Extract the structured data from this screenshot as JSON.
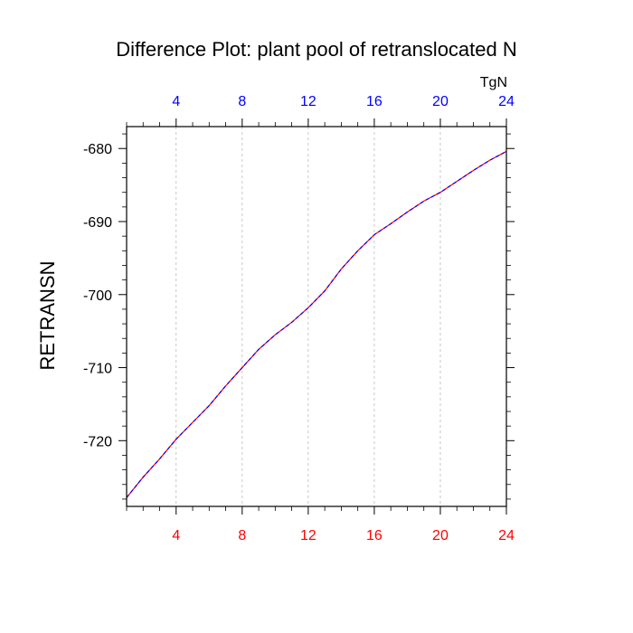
{
  "chart_data": {
    "type": "line",
    "title": "Difference Plot: plant pool of retranslocated N",
    "units": "TgN",
    "ylabel": "RETRANSN",
    "xlabel": "",
    "xlim": [
      1,
      24
    ],
    "ylim": [
      -729,
      -677
    ],
    "x_ticks": [
      4,
      8,
      12,
      16,
      20,
      24
    ],
    "y_ticks": [
      -680,
      -690,
      -700,
      -710,
      -720
    ],
    "grid": "vertical dashed at x ticks",
    "colors": {
      "bottom_axis_labels": "#ff0000",
      "top_axis_labels": "#0000ff",
      "line_primary": "#ff0000",
      "line_overlay": "#0000ff",
      "grid": "#bbbbbb",
      "axes": "#000000"
    },
    "series": [
      {
        "x": [
          1,
          2,
          3,
          4,
          5,
          6,
          7,
          8,
          9,
          10,
          11,
          12,
          13,
          14,
          15,
          16,
          17,
          18,
          19,
          20,
          21,
          22,
          23,
          24
        ],
        "values": [
          -727.8,
          -725.0,
          -722.5,
          -719.8,
          -717.5,
          -715.2,
          -712.5,
          -710.0,
          -707.5,
          -705.5,
          -703.8,
          -701.8,
          -699.5,
          -696.5,
          -694.0,
          -691.8,
          -690.3,
          -688.7,
          -687.2,
          -686.0,
          -684.5,
          -683.0,
          -681.6,
          -680.4
        ]
      }
    ]
  }
}
